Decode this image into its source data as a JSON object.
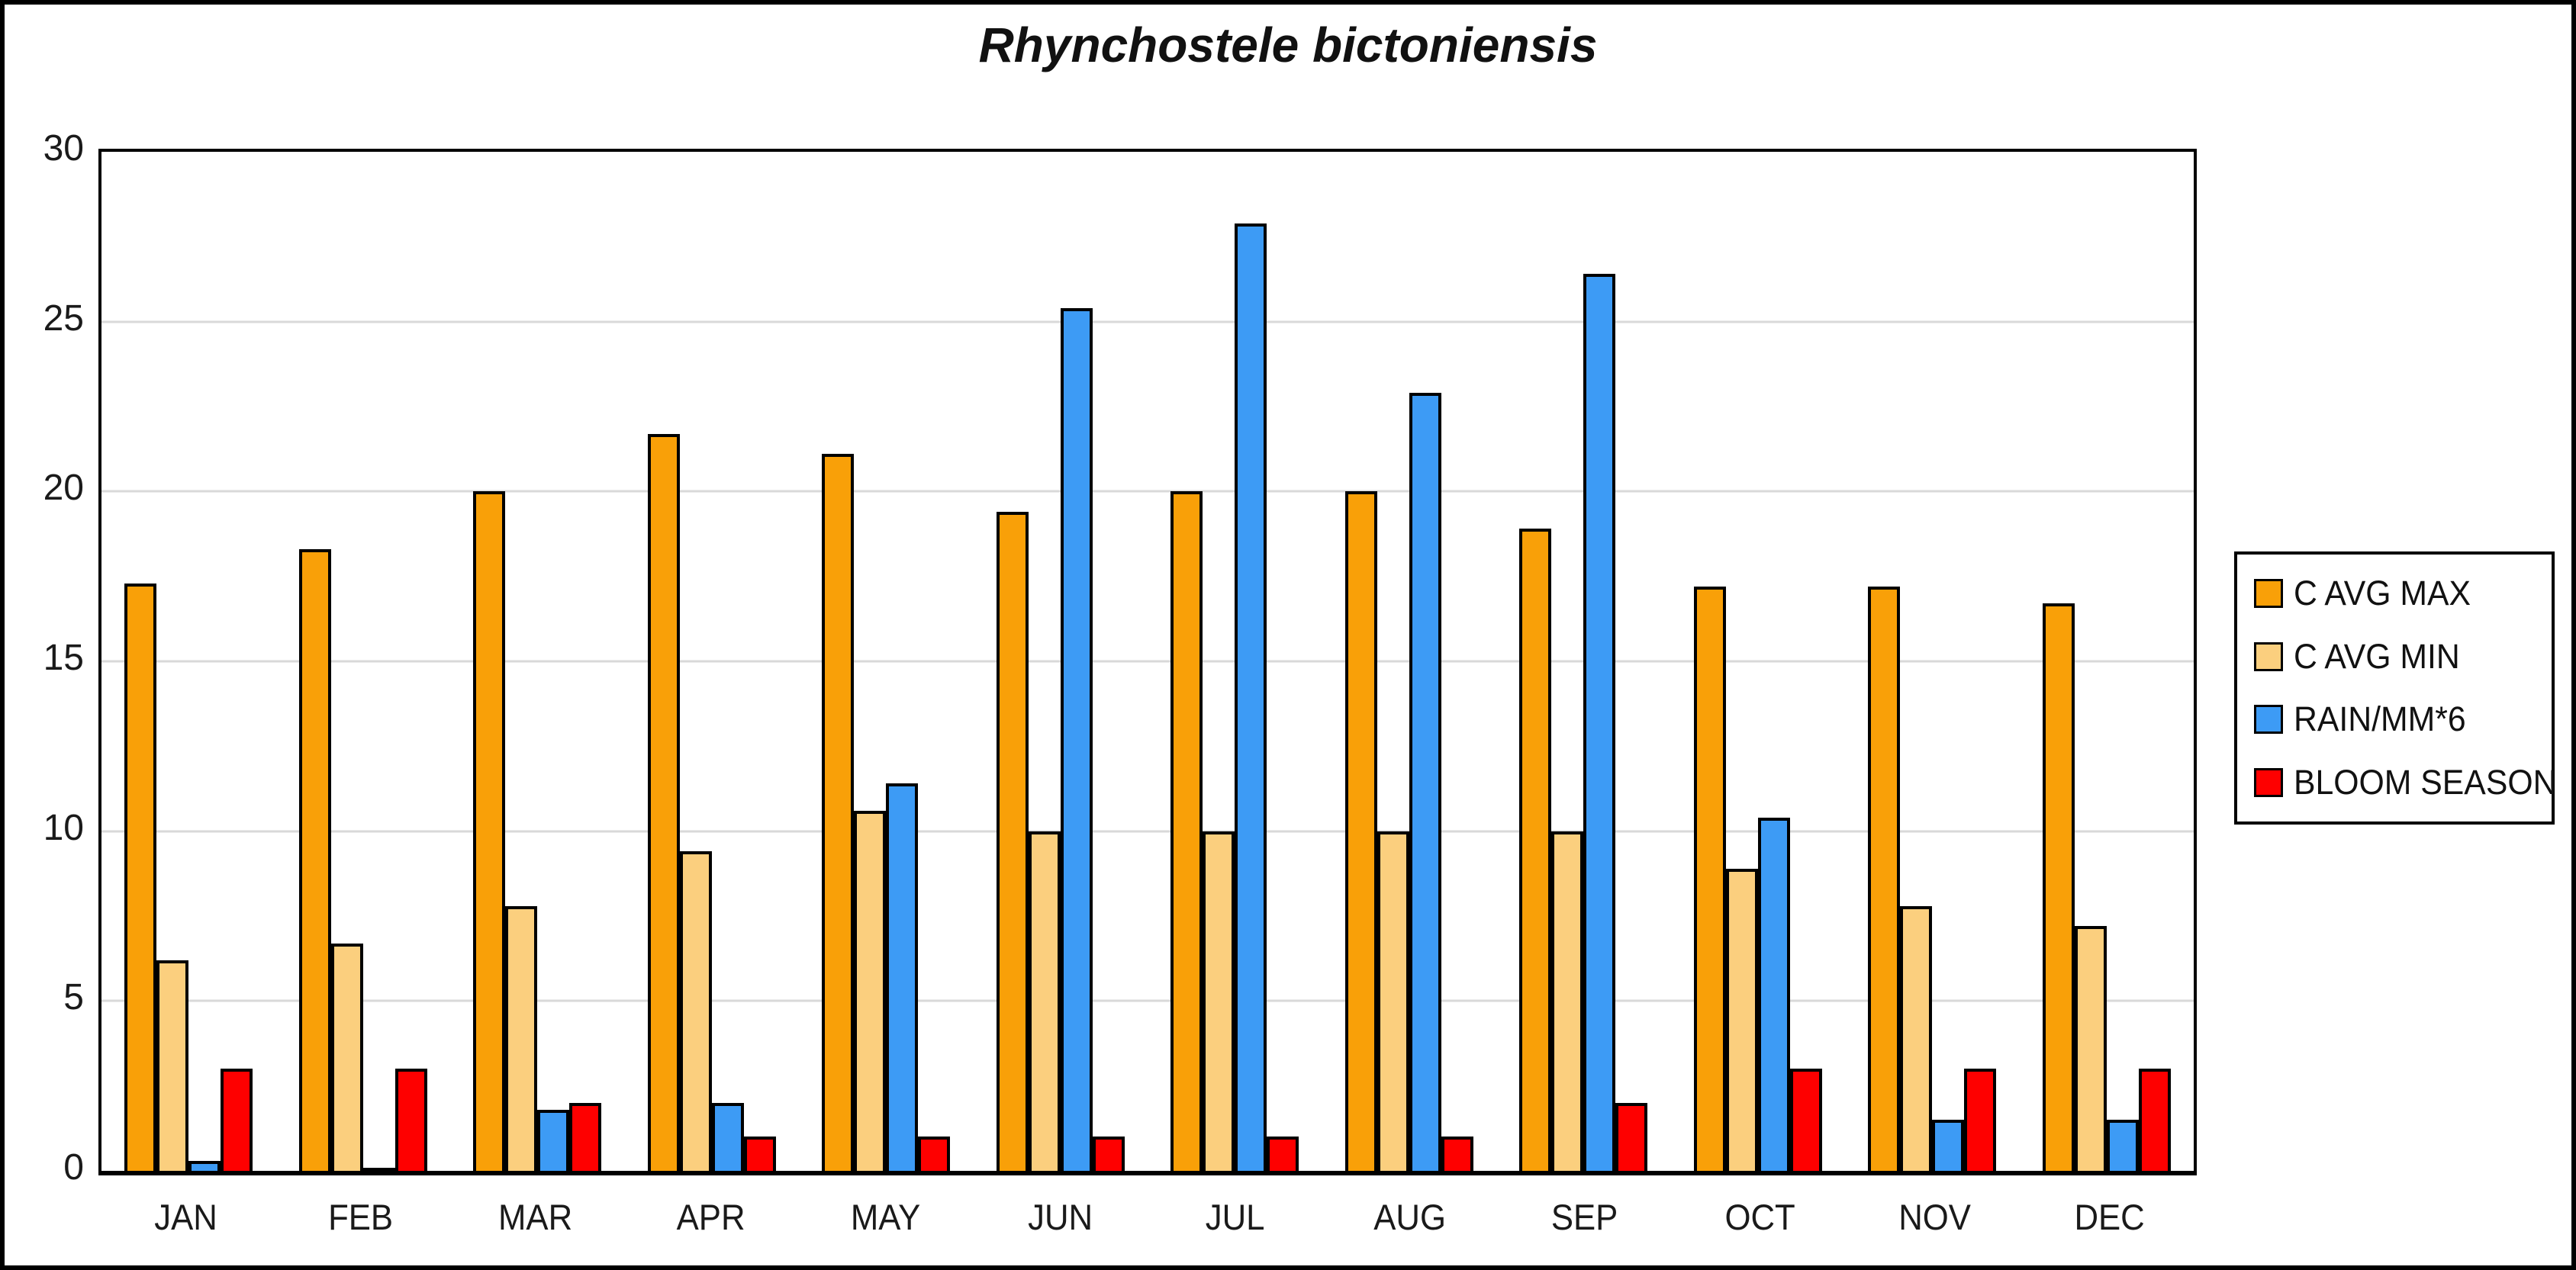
{
  "title": "Rhynchostele bictoniensis",
  "chart_data": {
    "type": "bar",
    "categories": [
      "JAN",
      "FEB",
      "MAR",
      "APR",
      "MAY",
      "JUN",
      "JUL",
      "AUG",
      "SEP",
      "OCT",
      "NOV",
      "DEC"
    ],
    "series": [
      {
        "name": "C AVG MAX",
        "color": "#F9A008",
        "values": [
          17.3,
          18.3,
          20.0,
          21.7,
          21.1,
          19.4,
          20.0,
          20.0,
          18.9,
          17.2,
          17.2,
          16.7
        ]
      },
      {
        "name": "C AVG MIN",
        "color": "#FBCF7E",
        "values": [
          6.2,
          6.7,
          7.8,
          9.4,
          10.6,
          10.0,
          10.0,
          10.0,
          10.0,
          8.9,
          7.8,
          7.2
        ]
      },
      {
        "name": "RAIN/MM*6",
        "color": "#3D9BF5",
        "values": [
          0.3,
          0.1,
          1.8,
          2.0,
          11.4,
          25.4,
          27.9,
          22.9,
          26.4,
          10.4,
          1.5,
          1.5
        ]
      },
      {
        "name": "BLOOM SEASON",
        "color": "#FE0000",
        "values": [
          3,
          3,
          2,
          1,
          1,
          1,
          1,
          1,
          2,
          3,
          3,
          3
        ]
      }
    ],
    "title": "Rhynchostele bictoniensis",
    "xlabel": "",
    "ylabel": "",
    "ylim": [
      0,
      30
    ],
    "yticks": [
      0,
      5,
      10,
      15,
      20,
      25,
      30
    ],
    "grid": true,
    "gridline_color": "#d9d9d9",
    "legend_position": "right",
    "background_color": "#ffffff",
    "border_color": "#000000"
  }
}
